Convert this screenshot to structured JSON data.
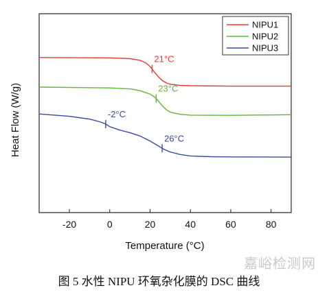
{
  "chart_data": {
    "type": "line",
    "xlabel": "Temperature (°C)",
    "ylabel": "Heat Flow (W/g)",
    "xlim": [
      -35,
      90
    ],
    "xticks": [
      -20,
      0,
      20,
      40,
      60,
      80
    ],
    "x_tick_labels": [
      "-20",
      "0",
      "20",
      "40",
      "60",
      "80"
    ],
    "y_ticks_shown": false,
    "legend_position": "top-right",
    "series": [
      {
        "name": "NIPU1",
        "color": "#e8382f",
        "x": [
          -35,
          0,
          10,
          15,
          18,
          20,
          21,
          22,
          24,
          26,
          28,
          30,
          35,
          40,
          60,
          90
        ],
        "y": [
          0.78,
          0.778,
          0.774,
          0.766,
          0.752,
          0.734,
          0.722,
          0.708,
          0.684,
          0.664,
          0.652,
          0.645,
          0.64,
          0.638,
          0.636,
          0.636
        ],
        "annotations": [
          {
            "x": 21,
            "label": "21°C"
          }
        ]
      },
      {
        "name": "NIPU2",
        "color": "#5fb832",
        "x": [
          -35,
          0,
          10,
          15,
          20,
          22,
          23,
          24,
          26,
          28,
          30,
          35,
          40,
          60,
          90
        ],
        "y": [
          0.631,
          0.627,
          0.622,
          0.613,
          0.596,
          0.583,
          0.574,
          0.562,
          0.538,
          0.518,
          0.505,
          0.494,
          0.49,
          0.489,
          0.492
        ],
        "annotations": [
          {
            "x": 23,
            "label": "23°C"
          }
        ]
      },
      {
        "name": "NIPU3",
        "color": "#3a49a0",
        "x": [
          -35,
          -20,
          -10,
          -5,
          -2,
          0,
          5,
          10,
          15,
          20,
          24,
          26,
          28,
          30,
          35,
          40,
          50,
          60,
          90
        ],
        "y": [
          0.496,
          0.484,
          0.47,
          0.457,
          0.445,
          0.432,
          0.415,
          0.402,
          0.385,
          0.36,
          0.336,
          0.323,
          0.313,
          0.305,
          0.292,
          0.285,
          0.281,
          0.28,
          0.279
        ],
        "annotations": [
          {
            "x": -2,
            "label": "-2°C"
          },
          {
            "x": 26,
            "label": "26°C"
          }
        ]
      }
    ]
  },
  "caption": "图 5  水性 NIPU 环氧杂化膜的 DSC 曲线",
  "watermark": "嘉峪检测网"
}
